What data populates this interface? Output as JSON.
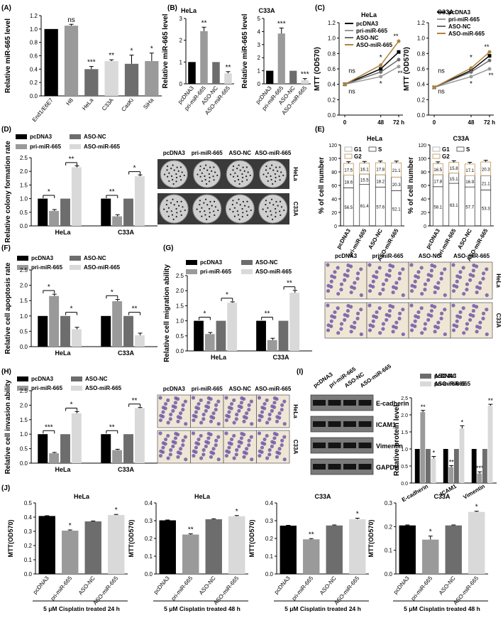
{
  "colors": {
    "black": "#000000",
    "dgray": "#6d6d6d",
    "mgray": "#9a9a9a",
    "lgray": "#d9d9d9",
    "gold": "#b0823c",
    "purple": "#6f5aa6"
  },
  "panels": {
    "A": {
      "letter": "(A)",
      "ylabel": "Relative miR-665 level",
      "ylim": [
        0,
        1.2
      ],
      "yticks": [
        "0.0",
        "0.2",
        "0.4",
        "0.6",
        "0.8",
        "1.0",
        "1.2"
      ]
    },
    "B": {
      "letter": "(B)",
      "ylabel": "Relative miR-665 level",
      "left_ticks": [
        "0",
        "1",
        "2",
        "3"
      ],
      "right_ticks": [
        "0",
        "1",
        "2",
        "3",
        "4",
        "5"
      ]
    },
    "C": {
      "letter": "(C)",
      "ylabel": "MTT (OD570)",
      "xticks": [
        "0",
        "48",
        "72 h"
      ],
      "yticks": [
        "0.0",
        "0.2",
        "0.4",
        "0.6",
        "0.8",
        "1.0",
        "1.2"
      ]
    },
    "D": {
      "letter": "(D)",
      "ylabel": "Relative colony formation rate",
      "yticks": [
        "0.0",
        "0.5",
        "1.0",
        "1.5",
        "2.0",
        "2.5"
      ]
    },
    "E": {
      "letter": "(E)",
      "ylabel": "% of cell number",
      "yticks": [
        "0",
        "20",
        "40",
        "60",
        "80",
        "100",
        "120"
      ]
    },
    "F": {
      "letter": "(F)",
      "ylabel": "Relative cell apoptosis rate",
      "yticks": [
        "0.0",
        "0.5",
        "1.0",
        "1.5",
        "2.0",
        "2.5"
      ]
    },
    "G": {
      "letter": "(G)",
      "ylabel": "Relative cell migration ability",
      "yticks": [
        "0.0",
        "0.5",
        "1.0",
        "1.5",
        "2.0",
        "2.5"
      ]
    },
    "H": {
      "letter": "(H)",
      "ylabel": "Relative cell invasion ability",
      "yticks": [
        "0.0",
        "0.5",
        "1.0",
        "1.5",
        "2.0",
        "2.5"
      ]
    },
    "I": {
      "letter": "(I)",
      "ylabel": "Relative protein level",
      "yticks": [
        "0.0",
        "0.5",
        "1.0",
        "1.5",
        "2.0",
        "2.5"
      ],
      "blot_labels": [
        "E-cadherin",
        "ICAM1",
        "Vimentin",
        "GAPDH"
      ]
    },
    "J": {
      "letter": "(J)",
      "ylabel": "MTT(OD570)"
    }
  },
  "legend4": [
    "pcDNA3",
    "pri-miR-665",
    "ASO-NC",
    "ASO-miR-665"
  ],
  "cell_lines": [
    "HeLa",
    "C33A"
  ],
  "image_headers": [
    "pcDNA3",
    "pri-miR-665",
    "ASO-NC",
    "ASO-miR-665"
  ],
  "chart_data": [
    {
      "panel": "A",
      "type": "bar",
      "categories": [
        "End1/E6E7",
        "H8",
        "HeLa",
        "C33A",
        "CasKi",
        "SiHa"
      ],
      "values": [
        1.0,
        1.05,
        0.4,
        0.52,
        0.48,
        0.52
      ],
      "errors": [
        0,
        0.02,
        0.04,
        0.02,
        0.13,
        0.12
      ],
      "sig": [
        "",
        "ns",
        "***",
        "**",
        "*",
        "*"
      ],
      "ylim": [
        0,
        1.2
      ]
    },
    {
      "panel": "B",
      "type": "bar",
      "title": "HeLa",
      "categories": [
        "pcDNA3",
        "pri-miR-665",
        "ASO-NC",
        "ASO-miR-665"
      ],
      "values": [
        1.0,
        2.42,
        1.0,
        0.48
      ],
      "errors": [
        0,
        0.18,
        0,
        0.08
      ],
      "sig": [
        "",
        "**",
        "",
        "**"
      ],
      "ylim": [
        0,
        3
      ]
    },
    {
      "panel": "B",
      "type": "bar",
      "title": "C33A",
      "categories": [
        "pcDNA3",
        "pri-miR-665",
        "ASO-NC",
        "ASO-miR-665"
      ],
      "values": [
        1.0,
        3.85,
        1.0,
        0.28
      ],
      "errors": [
        0,
        0.42,
        0,
        0.12
      ],
      "sig": [
        "",
        "***",
        "",
        "***"
      ],
      "ylim": [
        0,
        5
      ]
    },
    {
      "panel": "C",
      "type": "line",
      "title": "HeLa",
      "x": [
        0,
        48,
        72
      ],
      "series": [
        {
          "name": "pcDNA3",
          "values": [
            0.4,
            0.6,
            0.82
          ]
        },
        {
          "name": "pri-miR-665",
          "values": [
            0.4,
            0.5,
            0.63
          ]
        },
        {
          "name": "ASO-NC",
          "values": [
            0.4,
            0.56,
            0.72
          ]
        },
        {
          "name": "ASO-miR-665",
          "values": [
            0.4,
            0.65,
            0.96
          ]
        }
      ],
      "annotations": [
        "ns",
        "ns",
        "*",
        "*",
        "*",
        "**"
      ],
      "ylim": [
        0,
        1.2
      ]
    },
    {
      "panel": "C",
      "type": "line",
      "title": "C33A",
      "x": [
        0,
        48,
        72
      ],
      "series": [
        {
          "name": "pcDNA3",
          "values": [
            0.36,
            0.58,
            0.77
          ]
        },
        {
          "name": "pri-miR-665",
          "values": [
            0.36,
            0.5,
            0.6
          ]
        },
        {
          "name": "ASO-NC",
          "values": [
            0.36,
            0.56,
            0.71
          ]
        },
        {
          "name": "ASO-miR-665",
          "values": [
            0.36,
            0.61,
            0.82
          ]
        }
      ],
      "annotations": [
        "ns",
        "ns",
        "*",
        "*",
        "*",
        "**"
      ],
      "ylim": [
        0,
        1.2
      ]
    },
    {
      "panel": "D",
      "type": "bar",
      "categories": [
        "HeLa",
        "C33A"
      ],
      "series": [
        {
          "name": "pcDNA3",
          "values": [
            1.0,
            1.0
          ]
        },
        {
          "name": "pri-miR-665",
          "values": [
            0.55,
            0.35
          ]
        },
        {
          "name": "ASO-NC",
          "values": [
            1.0,
            1.0
          ]
        },
        {
          "name": "ASO-miR-665",
          "values": [
            2.15,
            1.82
          ]
        }
      ],
      "errors": [
        [
          0,
          0
        ],
        [
          0.05,
          0.06
        ],
        [
          0,
          0
        ],
        [
          0.05,
          0.05
        ]
      ],
      "sig": [
        "*",
        "**",
        "**",
        "*"
      ],
      "ylim": [
        0,
        2.5
      ]
    },
    {
      "panel": "E",
      "type": "bar",
      "title": "HeLa",
      "categories": [
        "pcDNA3",
        "pri-miR-665",
        "ASO-NC",
        "ASO-miR-665"
      ],
      "series": [
        {
          "name": "G1",
          "values": [
            56.5,
            61.4,
            57.6,
            52.1
          ]
        },
        {
          "name": "S",
          "values": [
            18.6,
            15.5,
            18.2,
            20.3
          ]
        },
        {
          "name": "G2",
          "values": [
            17.5,
            16.1,
            17.8,
            21.1
          ]
        }
      ],
      "ylim": [
        0,
        120
      ]
    },
    {
      "panel": "E",
      "type": "bar",
      "title": "C33A",
      "categories": [
        "pcDNA3",
        "pri-miR-665",
        "ASO-NC",
        "ASO-miR-665"
      ],
      "series": [
        {
          "name": "G1",
          "values": [
            58.1,
            63.1,
            57.7,
            53.3
          ]
        },
        {
          "name": "S",
          "values": [
            17.8,
            15.1,
            16.9,
            21.1
          ]
        },
        {
          "name": "G2",
          "values": [
            16.5,
            15.8,
            17.1,
            20.3
          ]
        }
      ],
      "ylim": [
        0,
        120
      ]
    },
    {
      "panel": "F",
      "type": "bar",
      "categories": [
        "HeLa",
        "C33A"
      ],
      "series": [
        {
          "name": "pcDNA3",
          "values": [
            1.0,
            1.0
          ]
        },
        {
          "name": "pri-miR-665",
          "values": [
            1.65,
            1.48
          ]
        },
        {
          "name": "ASO-NC",
          "values": [
            1.0,
            1.0
          ]
        },
        {
          "name": "ASO-miR-665",
          "values": [
            0.57,
            0.37
          ]
        }
      ],
      "errors": [
        [
          0,
          0
        ],
        [
          0.06,
          0.06
        ],
        [
          0,
          0
        ],
        [
          0.06,
          0.07
        ]
      ],
      "sig": [
        "*",
        "*",
        "*",
        "**"
      ],
      "ylim": [
        0,
        2.5
      ]
    },
    {
      "panel": "G",
      "type": "bar",
      "categories": [
        "HeLa",
        "C33A"
      ],
      "series": [
        {
          "name": "pcDNA3",
          "values": [
            1.0,
            1.0
          ]
        },
        {
          "name": "pri-miR-665",
          "values": [
            0.56,
            0.36
          ]
        },
        {
          "name": "ASO-NC",
          "values": [
            1.0,
            1.0
          ]
        },
        {
          "name": "ASO-miR-665",
          "values": [
            1.6,
            1.93
          ]
        }
      ],
      "errors": [
        [
          0,
          0
        ],
        [
          0.05,
          0.06
        ],
        [
          0,
          0
        ],
        [
          0.03,
          0.08
        ]
      ],
      "sig": [
        "*",
        "*",
        "**",
        "**"
      ],
      "ylim": [
        0,
        2.5
      ]
    },
    {
      "panel": "H",
      "type": "bar",
      "categories": [
        "HeLa",
        "C33A"
      ],
      "series": [
        {
          "name": "pcDNA3",
          "values": [
            1.0,
            1.0
          ]
        },
        {
          "name": "pri-miR-665",
          "values": [
            0.34,
            0.45
          ]
        },
        {
          "name": "ASO-NC",
          "values": [
            1.0,
            1.0
          ]
        },
        {
          "name": "ASO-miR-665",
          "values": [
            1.72,
            1.9
          ]
        }
      ],
      "errors": [
        [
          0,
          0
        ],
        [
          0.03,
          0.03
        ],
        [
          0,
          0
        ],
        [
          0.06,
          0.02
        ]
      ],
      "sig": [
        "***",
        "*",
        "**",
        "**"
      ],
      "ylim": [
        0,
        2.5
      ]
    },
    {
      "panel": "I",
      "type": "bar",
      "categories": [
        "E-cadherin",
        "ICAM1",
        "Vimentin"
      ],
      "series": [
        {
          "name": "pcDNA3",
          "values": [
            1.0,
            1.0,
            1.0
          ]
        },
        {
          "name": "pri-miR-665",
          "values": [
            2.08,
            0.47,
            0.28
          ]
        },
        {
          "name": "ASO-NC",
          "values": [
            1.0,
            1.0,
            1.0
          ]
        },
        {
          "name": "ASO-miR-665",
          "values": [
            0.72,
            1.6,
            2.27
          ]
        }
      ],
      "errors": [
        [
          0,
          0,
          0
        ],
        [
          0.05,
          0.04,
          0.05
        ],
        [
          0,
          0,
          0
        ],
        [
          0.06,
          0.08,
          0.04
        ]
      ],
      "sig": [
        "**",
        "*",
        "**",
        "*",
        "***",
        "**"
      ],
      "ylim": [
        0,
        2.5
      ]
    },
    {
      "panel": "J",
      "type": "bar",
      "title": "HeLa",
      "footer": "5 μM  Cisplatin treated 24 h",
      "categories": [
        "pcDNA3",
        "pri-miR-665",
        "ASO-NC",
        "ASO-miR-665"
      ],
      "values": [
        0.408,
        0.305,
        0.37,
        0.415
      ],
      "errors": [
        0.002,
        0.005,
        0.003,
        0.004
      ],
      "sig": [
        "",
        "*",
        "",
        "*"
      ],
      "ylim": [
        0,
        0.5
      ],
      "yticks": [
        "0.0",
        "0.1",
        "0.2",
        "0.3",
        "0.4",
        "0.5"
      ]
    },
    {
      "panel": "J",
      "type": "bar",
      "title": "HeLa",
      "footer": "5 μM  Cisplatin treated 48 h",
      "categories": [
        "pcDNA3",
        "pri-miR-665",
        "ASO-NC",
        "ASO-miR-665"
      ],
      "values": [
        0.302,
        0.222,
        0.308,
        0.325
      ],
      "errors": [
        0.002,
        0.004,
        0.003,
        0.004
      ],
      "sig": [
        "",
        "**",
        "",
        "*"
      ],
      "ylim": [
        0,
        0.4
      ],
      "yticks": [
        "0.0",
        "0.1",
        "0.2",
        "0.3",
        "0.4"
      ]
    },
    {
      "panel": "J",
      "type": "bar",
      "title": "C33A",
      "footer": "5 μM  Cisplatin treated 24 h",
      "categories": [
        "pcDNA3",
        "pri-miR-665",
        "ASO-NC",
        "ASO-miR-665"
      ],
      "values": [
        0.272,
        0.195,
        0.273,
        0.308
      ],
      "errors": [
        0.002,
        0.004,
        0.003,
        0.006
      ],
      "sig": [
        "",
        "**",
        "",
        "*"
      ],
      "ylim": [
        0,
        0.4
      ],
      "yticks": [
        "0.0",
        "0.1",
        "0.2",
        "0.3",
        "0.4"
      ]
    },
    {
      "panel": "J",
      "type": "bar",
      "title": "C33A",
      "footer": "5 μM  Cisplatin treated 48 h",
      "categories": [
        "pcDNA3",
        "pri-miR-665",
        "ASO-NC",
        "ASO-miR-665"
      ],
      "values": [
        0.205,
        0.145,
        0.205,
        0.262
      ],
      "errors": [
        0.002,
        0.015,
        0.002,
        0.003
      ],
      "sig": [
        "",
        "*",
        "",
        "*"
      ],
      "ylim": [
        0,
        0.3
      ],
      "yticks": [
        "0.0",
        "0.1",
        "0.2",
        "0.3"
      ]
    }
  ]
}
